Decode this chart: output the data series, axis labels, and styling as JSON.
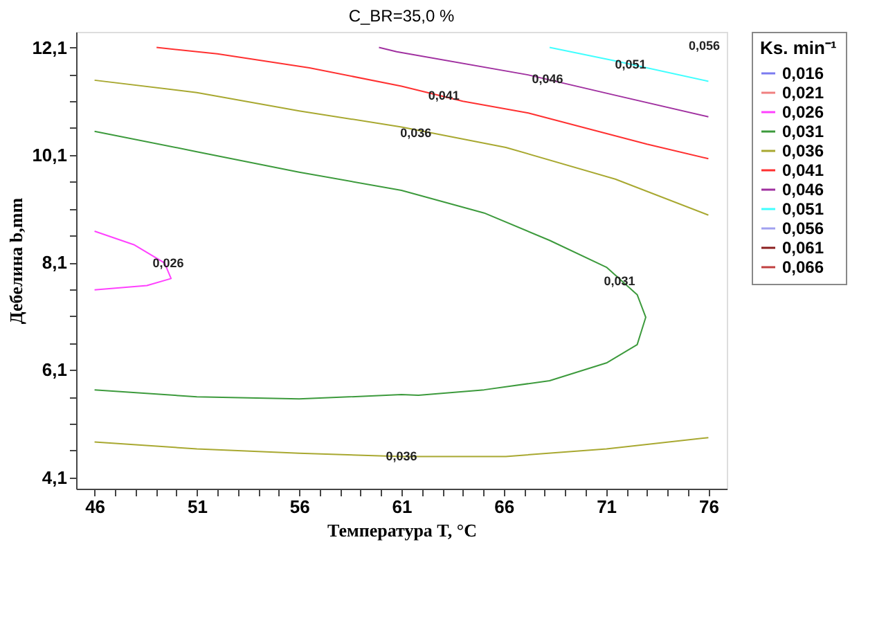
{
  "chart_data": {
    "type": "line",
    "title": "C_BR=35,0 %",
    "xlabel": "Температура T, °C",
    "ylabel": "Дебелина b,mm",
    "legend_title": "Ks. min⁻¹",
    "xlim": [
      45.1,
      76.9
    ],
    "ylim": [
      3.89,
      12.39
    ],
    "xticks": [
      46,
      {
        "value": 47,
        "label": null
      },
      {
        "value": 48,
        "label": null
      },
      {
        "value": 49,
        "label": null
      },
      {
        "value": 50,
        "label": null
      },
      51,
      {
        "value": 52,
        "label": null
      },
      {
        "value": 53,
        "label": null
      },
      {
        "value": 54,
        "label": null
      },
      {
        "value": 55,
        "label": null
      },
      56,
      {
        "value": 57,
        "label": null
      },
      {
        "value": 58,
        "label": null
      },
      {
        "value": 59,
        "label": null
      },
      {
        "value": 60,
        "label": null
      },
      61,
      {
        "value": 62,
        "label": null
      },
      {
        "value": 63,
        "label": null
      },
      {
        "value": 64,
        "label": null
      },
      {
        "value": 65,
        "label": null
      },
      66,
      {
        "value": 67,
        "label": null
      },
      {
        "value": 68,
        "label": null
      },
      {
        "value": 69,
        "label": null
      },
      {
        "value": 70,
        "label": null
      },
      71,
      {
        "value": 72,
        "label": null
      },
      {
        "value": 73,
        "label": null
      },
      {
        "value": 74,
        "label": null
      },
      {
        "value": 75,
        "label": null
      },
      76
    ],
    "yticks": [
      {
        "value": 4.1,
        "label": "4,1"
      },
      {
        "value": 4.6,
        "label": null
      },
      {
        "value": 5.1,
        "label": null
      },
      {
        "value": 5.6,
        "label": null
      },
      {
        "value": 6.1,
        "label": "6,1"
      },
      {
        "value": 6.6,
        "label": null
      },
      {
        "value": 7.1,
        "label": null
      },
      {
        "value": 7.6,
        "label": null
      },
      {
        "value": 8.1,
        "label": "8,1"
      },
      {
        "value": 8.6,
        "label": null
      },
      {
        "value": 9.1,
        "label": null
      },
      {
        "value": 9.6,
        "label": null
      },
      {
        "value": 10.1,
        "label": "10,1"
      },
      {
        "value": 10.6,
        "label": null
      },
      {
        "value": 11.1,
        "label": null
      },
      {
        "value": 11.6,
        "label": null
      },
      {
        "value": 12.1,
        "label": "12,1"
      }
    ],
    "grid": false,
    "legend": "right",
    "marker": "none",
    "line_style": "solid",
    "series": [
      {
        "name": "0,016",
        "color": "#7b7bf0"
      },
      {
        "name": "0,021",
        "color": "#f08080"
      },
      {
        "name": "0,026",
        "color": "#ff40ff",
        "x": [
          46,
          47.92,
          49.42,
          49.74,
          48.56,
          46
        ],
        "values": [
          8.68,
          8.43,
          8.09,
          7.8,
          7.67,
          7.59
        ]
      },
      {
        "name": "0,031",
        "color": "#3c9a3c",
        "x": [
          46,
          51,
          56,
          61,
          65.04,
          68.24,
          71.02,
          72.52,
          72.94,
          72.52,
          71.02,
          68.24,
          65.04,
          61.83,
          61,
          56,
          51,
          46
        ],
        "values": [
          10.54,
          10.16,
          9.78,
          9.44,
          9.02,
          8.51,
          8.01,
          7.5,
          7.08,
          6.57,
          6.23,
          5.9,
          5.73,
          5.63,
          5.64,
          5.56,
          5.6,
          5.73
        ]
      },
      {
        "name": "0,036",
        "color": "#a8a830",
        "x": [
          46,
          51,
          56,
          61,
          66.1,
          71.45,
          76,
          null,
          46,
          51,
          56,
          61,
          66.1,
          71.02,
          76
        ],
        "values": [
          11.49,
          11.26,
          10.92,
          10.62,
          10.24,
          9.65,
          8.98,
          null,
          4.76,
          4.63,
          4.55,
          4.49,
          4.49,
          4.63,
          4.84
        ]
      },
      {
        "name": "0,041",
        "color": "#ff3030",
        "x": [
          49.03,
          52,
          56.5,
          61,
          64,
          67.2,
          70,
          73,
          76
        ],
        "values": [
          12.1,
          11.98,
          11.72,
          11.38,
          11.1,
          10.88,
          10.6,
          10.3,
          10.03
        ]
      },
      {
        "name": "0,046",
        "color": "#a030a0",
        "x": [
          59.9,
          60.77,
          67.18,
          71.45,
          76
        ],
        "values": [
          12.1,
          12.02,
          11.59,
          11.21,
          10.81
        ]
      },
      {
        "name": "0,051",
        "color": "#40ffff",
        "x": [
          68.24,
          71.45,
          76
        ],
        "values": [
          12.1,
          11.85,
          11.47
        ]
      },
      {
        "name": "0,056",
        "color": "#a0a0f0"
      },
      {
        "name": "0,061",
        "color": "#8b2020"
      },
      {
        "name": "0,066",
        "color": "#c04040"
      }
    ],
    "annotations": [
      {
        "text": "0,026",
        "x": 49.6,
        "y": 8.09
      },
      {
        "text": "0,031",
        "x": 71.66,
        "y": 7.75
      },
      {
        "text": "0,036",
        "x": 61.7,
        "y": 10.51
      },
      {
        "text": "0,036",
        "x": 61,
        "y": 4.5
      },
      {
        "text": "0,041",
        "x": 63.07,
        "y": 11.21
      },
      {
        "text": "0,046",
        "x": 68.14,
        "y": 11.51
      },
      {
        "text": "0,051",
        "x": 72.2,
        "y": 11.79
      },
      "0,056"
    ]
  }
}
